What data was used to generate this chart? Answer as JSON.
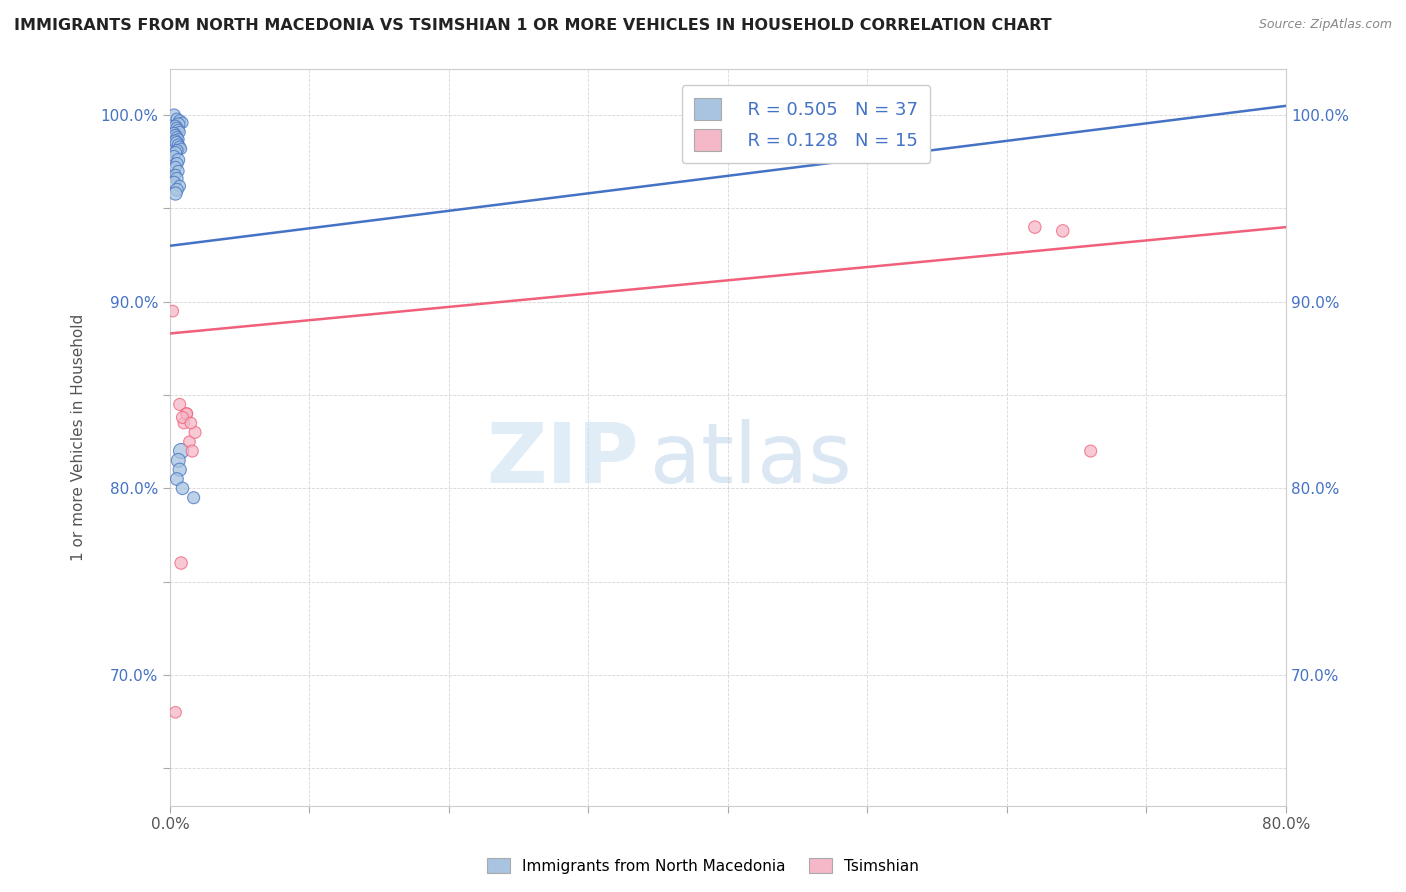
{
  "title": "IMMIGRANTS FROM NORTH MACEDONIA VS TSIMSHIAN 1 OR MORE VEHICLES IN HOUSEHOLD CORRELATION CHART",
  "source": "Source: ZipAtlas.com",
  "xlabel": "",
  "ylabel": "1 or more Vehicles in Household",
  "xlim": [
    0.0,
    0.8
  ],
  "ylim": [
    0.63,
    1.025
  ],
  "xticks": [
    0.0,
    0.1,
    0.2,
    0.3,
    0.4,
    0.5,
    0.6,
    0.7,
    0.8
  ],
  "xticklabels": [
    "0.0%",
    "",
    "",
    "",
    "",
    "",
    "",
    "",
    "80.0%"
  ],
  "yticks": [
    0.65,
    0.7,
    0.75,
    0.8,
    0.85,
    0.9,
    0.95,
    1.0
  ],
  "yticklabels_left": [
    "",
    "70.0%",
    "",
    "80.0%",
    "",
    "90.0%",
    "",
    "100.0%"
  ],
  "yticklabels_right": [
    "",
    "70.0%",
    "",
    "80.0%",
    "",
    "90.0%",
    "",
    "100.0%"
  ],
  "legend_r1": "R = 0.505",
  "legend_n1": "N = 37",
  "legend_r2": "R = 0.128",
  "legend_n2": "N = 15",
  "legend_label1": "Immigrants from North Macedonia",
  "legend_label2": "Tsimshian",
  "blue_color": "#a8c4e0",
  "pink_color": "#f4b8c8",
  "blue_line_color": "#4472c4",
  "pink_line_color": "#f0607a",
  "watermark_zip": "ZIP",
  "watermark_atlas": "atlas",
  "blue_x": [
    0.003,
    0.005,
    0.007,
    0.009,
    0.006,
    0.004,
    0.005,
    0.006,
    0.007,
    0.003,
    0.004,
    0.005,
    0.006,
    0.004,
    0.005,
    0.006,
    0.007,
    0.008,
    0.005,
    0.004,
    0.003,
    0.006,
    0.005,
    0.004,
    0.006,
    0.004,
    0.005,
    0.003,
    0.007,
    0.005,
    0.004,
    0.008,
    0.006,
    0.007,
    0.005,
    0.009,
    0.017
  ],
  "blue_y": [
    1.0,
    0.998,
    0.997,
    0.996,
    0.995,
    0.994,
    0.993,
    0.992,
    0.991,
    0.99,
    0.989,
    0.988,
    0.987,
    0.986,
    0.985,
    0.984,
    0.983,
    0.982,
    0.981,
    0.98,
    0.978,
    0.976,
    0.974,
    0.972,
    0.97,
    0.968,
    0.966,
    0.964,
    0.962,
    0.96,
    0.958,
    0.82,
    0.815,
    0.81,
    0.805,
    0.8,
    0.795
  ],
  "pink_x": [
    0.002,
    0.007,
    0.01,
    0.012,
    0.014,
    0.016,
    0.62,
    0.64,
    0.66,
    0.008,
    0.012,
    0.018,
    0.004,
    0.009,
    0.015
  ],
  "pink_y": [
    0.895,
    0.845,
    0.835,
    0.84,
    0.825,
    0.82,
    0.94,
    0.938,
    0.82,
    0.76,
    0.84,
    0.83,
    0.68,
    0.838,
    0.835
  ],
  "blue_sizes": [
    80,
    70,
    75,
    65,
    90,
    80,
    75,
    70,
    65,
    85,
    80,
    75,
    70,
    85,
    90,
    75,
    70,
    65,
    80,
    75,
    70,
    85,
    80,
    75,
    70,
    65,
    80,
    75,
    70,
    85,
    90,
    120,
    100,
    90,
    85,
    80,
    75
  ],
  "pink_sizes": [
    70,
    75,
    70,
    75,
    70,
    75,
    80,
    80,
    75,
    80,
    70,
    75,
    70,
    75,
    70
  ],
  "blue_trendline_x": [
    0.0,
    0.8
  ],
  "blue_trendline_y": [
    0.93,
    1.005
  ],
  "pink_trendline_x": [
    0.0,
    0.8
  ],
  "pink_trendline_y": [
    0.883,
    0.94
  ]
}
